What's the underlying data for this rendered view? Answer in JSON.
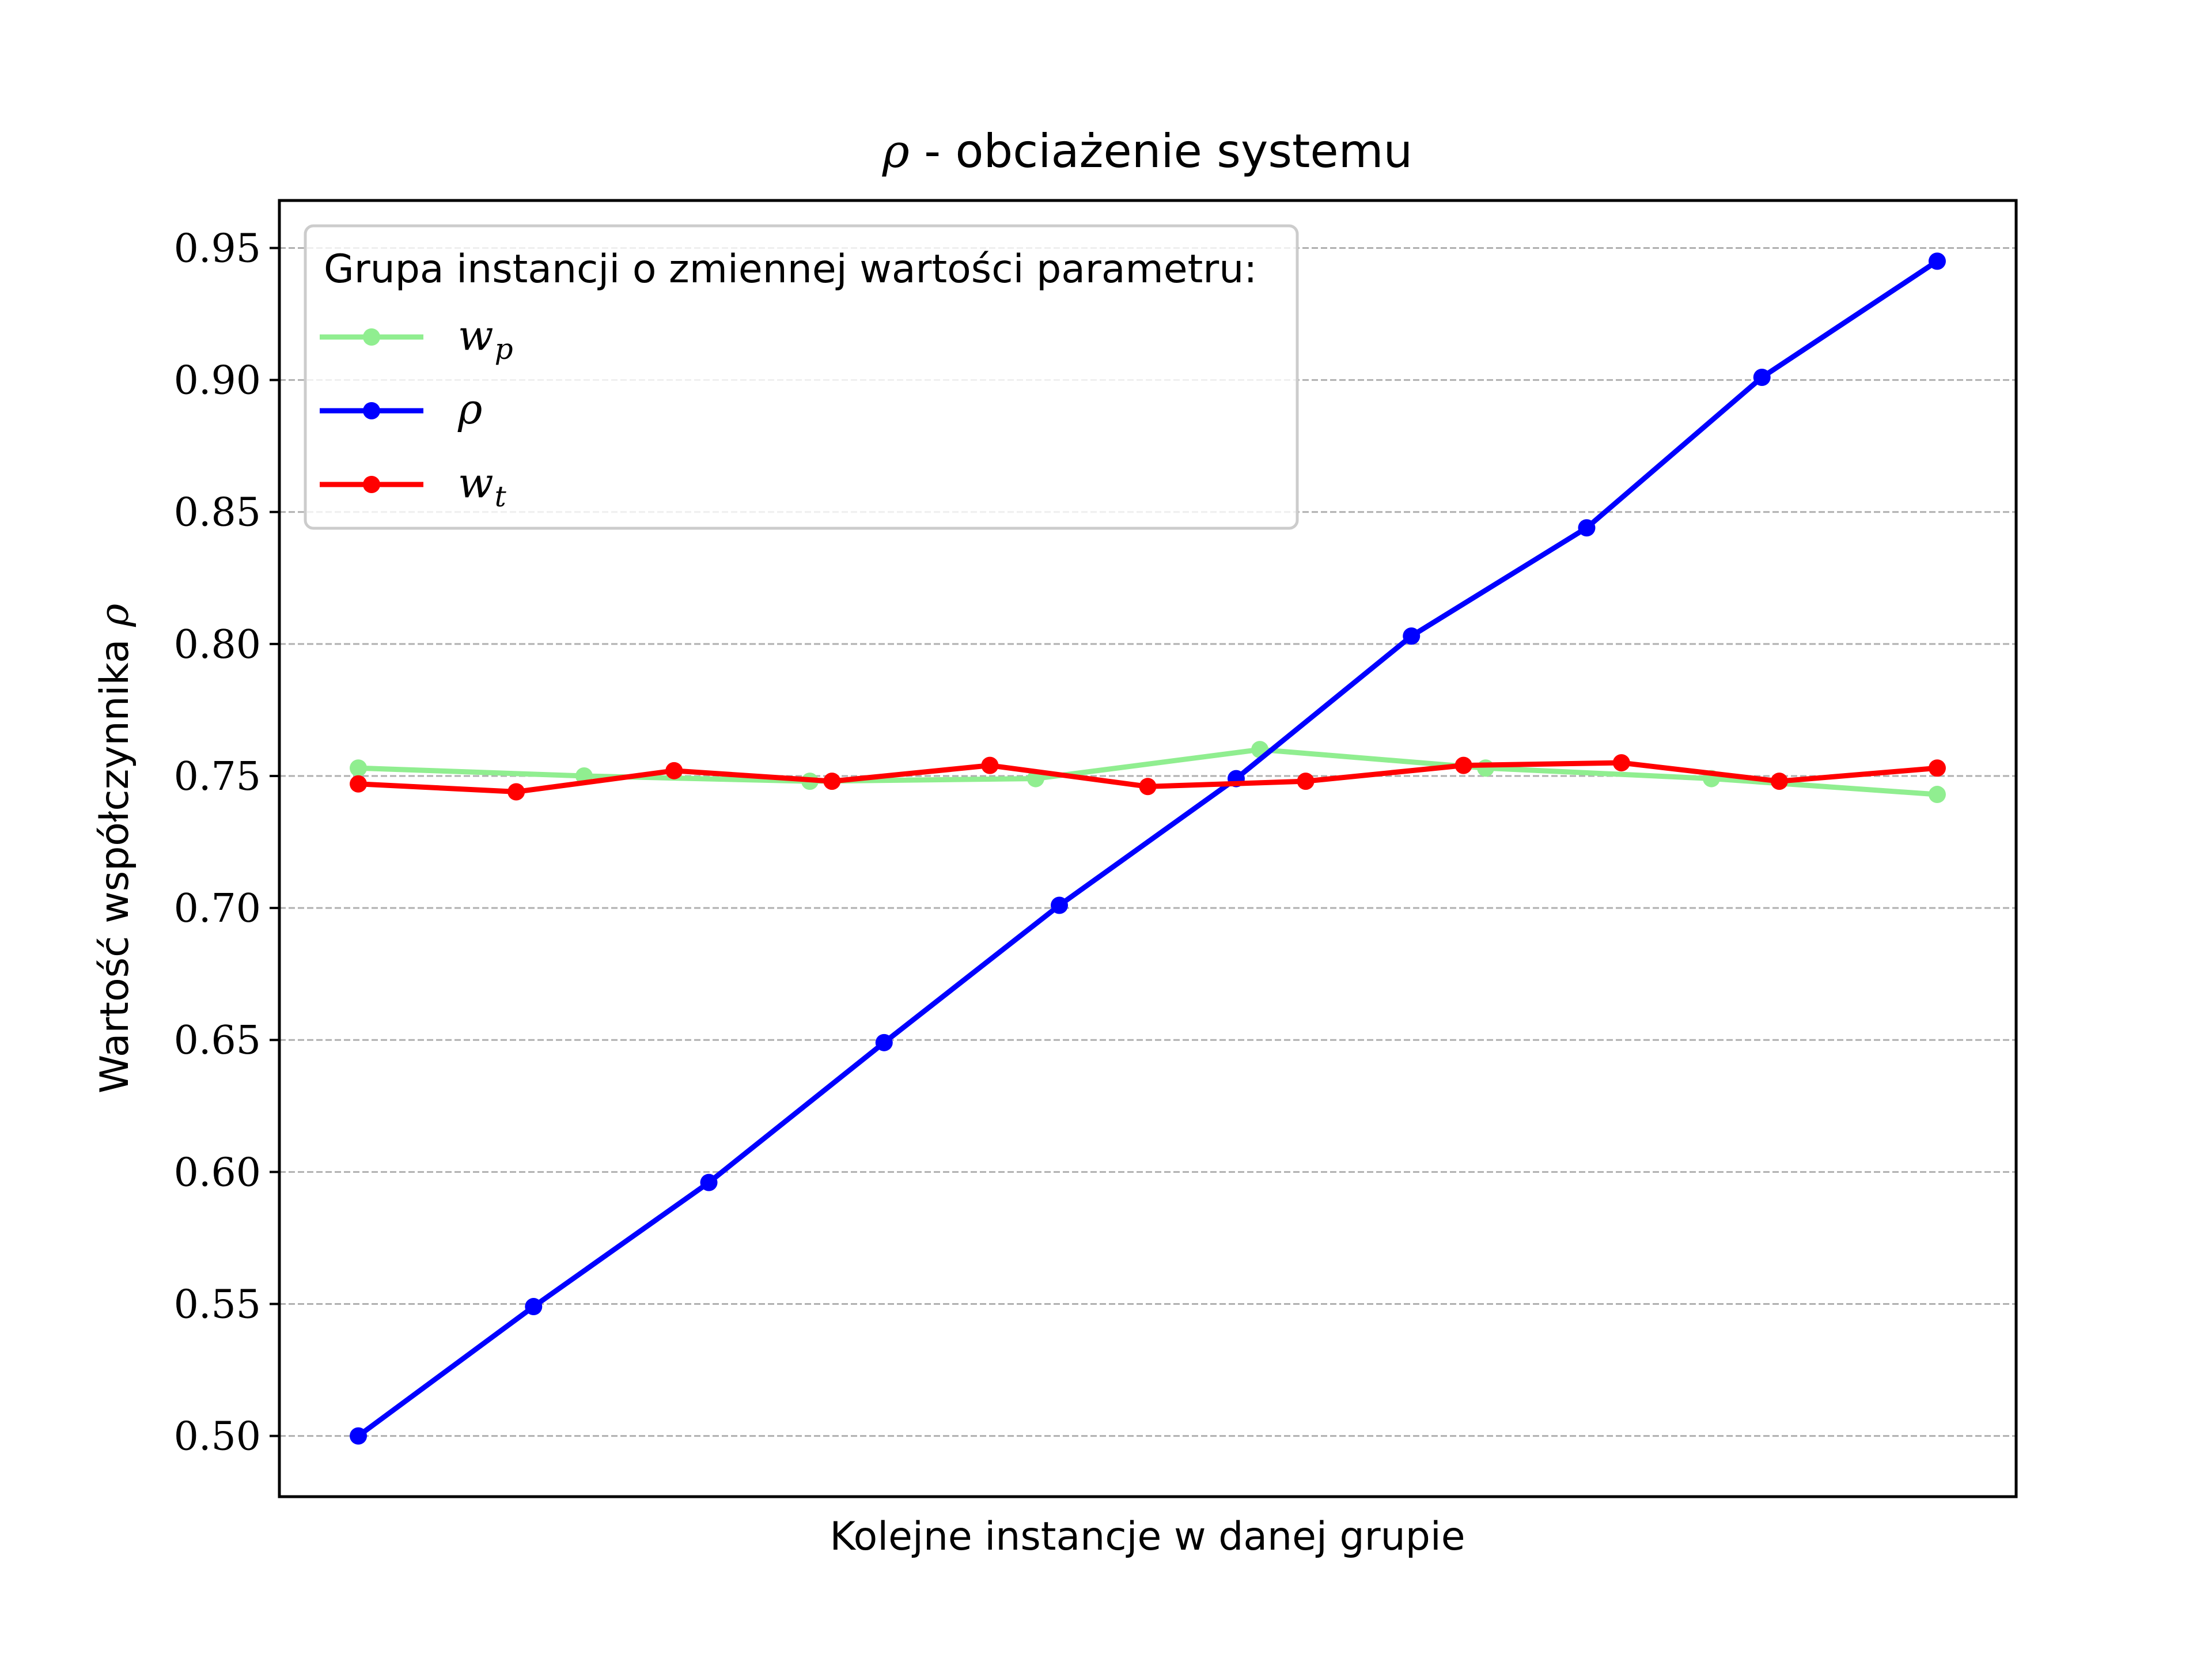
{
  "chart_data": {
    "type": "line",
    "title": {
      "symbol": "ρ",
      "text": " - obciażenie systemu"
    },
    "xlabel": "Kolejne instancje w danej grupie",
    "ylabel": {
      "text": "Wartość współczynnika ",
      "symbol": "ρ"
    },
    "ylim": [
      0.477,
      0.968
    ],
    "yticks": [
      0.5,
      0.55,
      0.6,
      0.65,
      0.7,
      0.75,
      0.8,
      0.85,
      0.9,
      0.95
    ],
    "ytick_labels": [
      "0.50",
      "0.55",
      "0.60",
      "0.65",
      "0.70",
      "0.75",
      "0.80",
      "0.85",
      "0.90",
      "0.95"
    ],
    "xlim": [
      -0.5,
      10.5
    ],
    "grid": {
      "y": true,
      "x": false,
      "style": "dashed"
    },
    "legend": {
      "placement": "upper-left",
      "title": "Grupa instancji o zmiennej wartości parametru:",
      "entries": [
        {
          "base": "w",
          "sub": "p",
          "color": "#90ee90"
        },
        {
          "base": "ρ",
          "sub": "",
          "color": "#0000ff"
        },
        {
          "base": "w",
          "sub": "t",
          "color": "#ff0000"
        }
      ]
    },
    "series": [
      {
        "color": "#90ee90",
        "x": [
          0,
          1.43,
          2.86,
          4.29,
          5.71,
          7.14,
          8.57,
          10
        ],
        "values": [
          0.753,
          0.75,
          0.748,
          0.749,
          0.76,
          0.753,
          0.749,
          0.743
        ]
      },
      {
        "color": "#0000ff",
        "x": [
          0,
          1.11,
          2.22,
          3.33,
          4.44,
          5.56,
          6.67,
          7.78,
          8.89,
          10
        ],
        "values": [
          0.5,
          0.549,
          0.596,
          0.649,
          0.701,
          0.749,
          0.803,
          0.844,
          0.901,
          0.945
        ]
      },
      {
        "color": "#ff0000",
        "x": [
          0,
          1,
          2,
          3,
          4,
          5,
          6,
          7,
          8,
          9,
          10
        ],
        "values": [
          0.747,
          0.744,
          0.752,
          0.748,
          0.754,
          0.746,
          0.748,
          0.754,
          0.755,
          0.748,
          0.753
        ]
      }
    ]
  }
}
